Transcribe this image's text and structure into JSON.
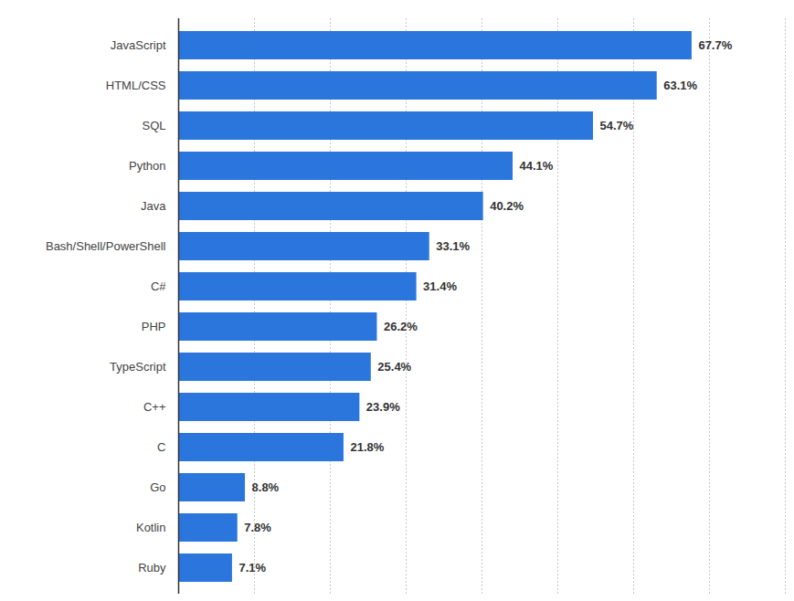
{
  "chart_data": {
    "type": "bar",
    "orientation": "horizontal",
    "categories": [
      "JavaScript",
      "HTML/CSS",
      "SQL",
      "Python",
      "Java",
      "Bash/Shell/PowerShell",
      "C#",
      "PHP",
      "TypeScript",
      "C++",
      "C",
      "Go",
      "Kotlin",
      "Ruby"
    ],
    "values": [
      67.7,
      63.1,
      54.7,
      44.1,
      40.2,
      33.1,
      31.4,
      26.2,
      25.4,
      23.9,
      21.8,
      8.8,
      7.8,
      7.1
    ],
    "value_labels": [
      "67.7%",
      "63.1%",
      "54.7%",
      "44.1%",
      "40.2%",
      "33.1%",
      "31.4%",
      "26.2%",
      "25.4%",
      "23.9%",
      "21.8%",
      "8.8%",
      "7.8%",
      "7.1%"
    ],
    "color": "#2a76dd",
    "xlim": [
      0,
      80
    ],
    "xticks": [
      0,
      10,
      20,
      30,
      40,
      50,
      60,
      70,
      80
    ],
    "grid": true,
    "data_labels": true,
    "tick_labels": "y"
  }
}
